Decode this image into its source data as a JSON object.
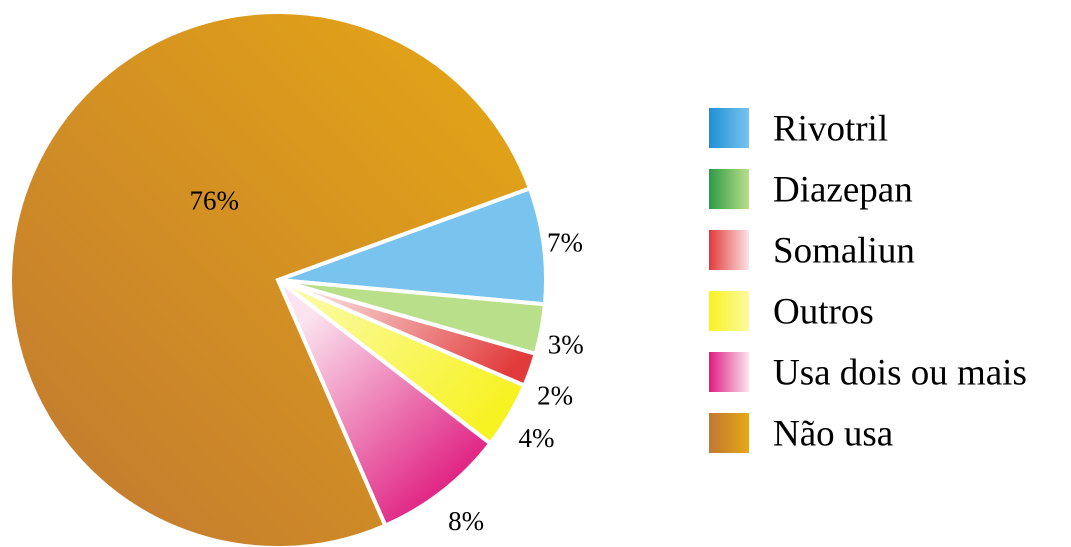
{
  "chart_data": {
    "type": "pie",
    "title": "",
    "legend_position": "right",
    "slices": [
      {
        "name": "Rivotril",
        "value": 7,
        "label": "7%",
        "color": "#78c4ef",
        "color_dark": "#1f8fd6"
      },
      {
        "name": "Diazepan",
        "value": 3,
        "label": "3%",
        "color": "#b9df8a",
        "color_dark": "#2e9a46"
      },
      {
        "name": "Somaliun",
        "value": 2,
        "label": "2%",
        "color": "#e23b3b",
        "color_dark": "#e23b3b",
        "color_light": "#fbe3e3"
      },
      {
        "name": "Outros",
        "value": 4,
        "label": "4%",
        "color": "#f7f222",
        "color_dark": "#f7f222",
        "color_light": "#fbfa9e"
      },
      {
        "name": "Usa dois ou mais",
        "value": 8,
        "label": "8%",
        "color": "#df1b7e",
        "color_dark": "#df1b7e",
        "color_light": "#fbe4ef"
      },
      {
        "name": "Não usa",
        "value": 76,
        "label": "76%",
        "color": "#e6a814",
        "color_dark": "#c07832"
      }
    ]
  }
}
